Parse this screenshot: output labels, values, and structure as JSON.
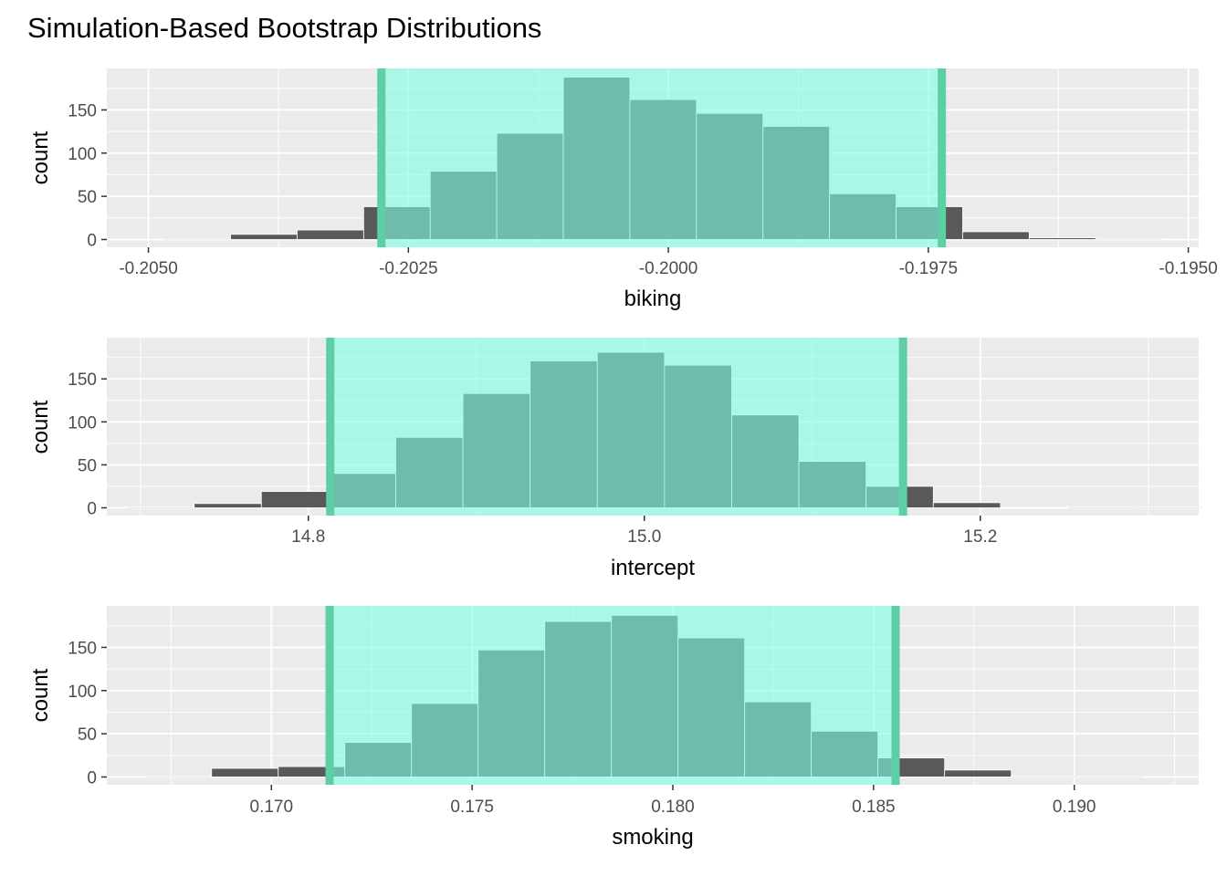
{
  "title": "Simulation-Based Bootstrap Distributions",
  "colors": {
    "panel_bg": "#ebebeb",
    "grid": "#ffffff",
    "bar_fill": "#595959",
    "bar_stroke": "#ffffff",
    "ci_shade": "#7fffe4",
    "ci_line": "#5ecfa4",
    "text": "#000000",
    "tick_text": "#4d4d4d",
    "tick_mark": "#333333"
  },
  "chart_data": [
    {
      "type": "bar",
      "xlabel": "biking",
      "ylabel": "count",
      "xlim": [
        -0.2054,
        -0.1949
      ],
      "ylim": [
        -9,
        198
      ],
      "x_ticks": [
        -0.205,
        -0.2025,
        -0.2,
        -0.1975,
        -0.195
      ],
      "x_tick_labels": [
        "-0.2050",
        "-0.2025",
        "-0.2000",
        "-0.1975",
        "-0.1950"
      ],
      "y_ticks": [
        0,
        50,
        100,
        150
      ],
      "y_tick_labels": [
        "0",
        "50",
        "100",
        "150"
      ],
      "bin_width": 0.00064,
      "bin_centers": [
        -0.20453,
        -0.20389,
        -0.20325,
        -0.20261,
        -0.20197,
        -0.20133,
        -0.20069,
        -0.20005,
        -0.19941,
        -0.19877,
        -0.19813,
        -0.19749,
        -0.19685,
        -0.19621,
        -0.19557
      ],
      "counts": [
        1,
        6,
        11,
        38,
        79,
        123,
        188,
        162,
        146,
        131,
        53,
        38,
        9,
        2,
        1
      ],
      "ci": [
        -0.20276,
        -0.19737
      ]
    },
    {
      "type": "bar",
      "xlabel": "intercept",
      "ylabel": "count",
      "xlim": [
        14.68,
        15.33
      ],
      "ylim": [
        -9,
        198
      ],
      "x_ticks": [
        14.8,
        15.0,
        15.2
      ],
      "x_tick_labels": [
        "14.8",
        "15.0",
        "15.2"
      ],
      "y_ticks": [
        0,
        50,
        100,
        150
      ],
      "y_tick_labels": [
        "0",
        "50",
        "100",
        "150"
      ],
      "bin_width": 0.04,
      "bin_centers": [
        14.712,
        14.752,
        14.792,
        14.832,
        14.872,
        14.912,
        14.952,
        14.992,
        15.032,
        15.072,
        15.112,
        15.152,
        15.192,
        15.232,
        15.272,
        15.312
      ],
      "counts": [
        1,
        5,
        19,
        40,
        82,
        133,
        171,
        181,
        166,
        108,
        54,
        25,
        6,
        0,
        1,
        1
      ],
      "ci": [
        14.813,
        15.154
      ]
    },
    {
      "type": "bar",
      "xlabel": "smoking",
      "ylabel": "count",
      "xlim": [
        0.1659,
        0.1931
      ],
      "ylim": [
        -9,
        198
      ],
      "x_ticks": [
        0.17,
        0.175,
        0.18,
        0.185,
        0.19
      ],
      "x_tick_labels": [
        "0.170",
        "0.175",
        "0.180",
        "0.185",
        "0.190"
      ],
      "y_ticks": [
        0,
        50,
        100,
        150
      ],
      "y_tick_labels": [
        "0",
        "50",
        "100",
        "150"
      ],
      "bin_width": 0.00166,
      "bin_centers": [
        0.16768,
        0.16934,
        0.171,
        0.17266,
        0.17432,
        0.17598,
        0.17764,
        0.1793,
        0.18096,
        0.18262,
        0.18428,
        0.18594,
        0.1876,
        0.18926,
        0.19092
      ],
      "counts": [
        1,
        10,
        12,
        40,
        85,
        147,
        180,
        187,
        161,
        87,
        53,
        22,
        8,
        1,
        1
      ],
      "ci": [
        0.17145,
        0.18555
      ]
    }
  ]
}
